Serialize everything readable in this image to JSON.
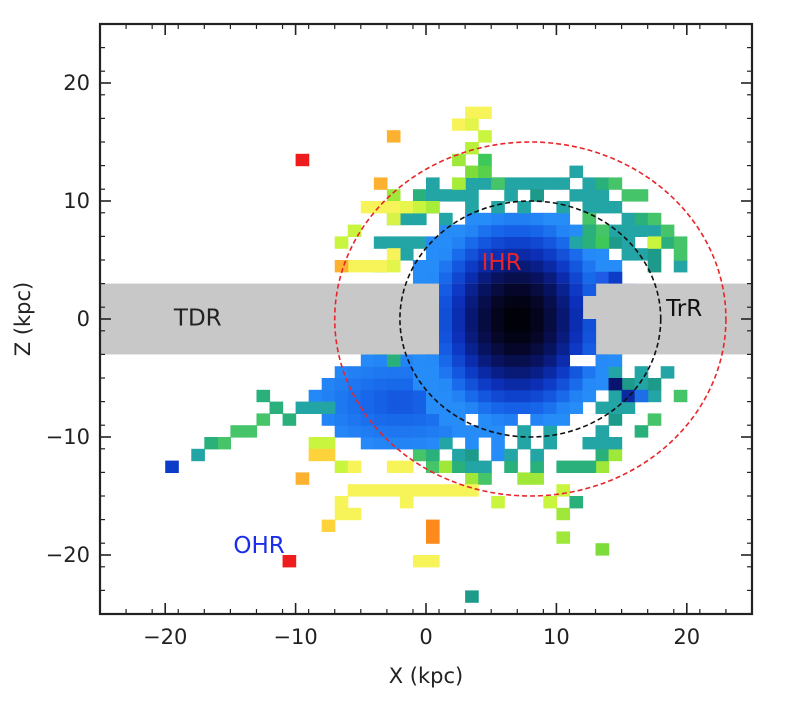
{
  "chart_data": {
    "type": "heatmap",
    "xlabel": "X (kpc)",
    "ylabel": "Z (kpc)",
    "xlim": [
      -25,
      25
    ],
    "ylim": [
      -25,
      25
    ],
    "xticks": [
      -20,
      -10,
      0,
      10,
      20
    ],
    "yticks": [
      -20,
      -10,
      0,
      10,
      20
    ],
    "xtick_labels": [
      "−20",
      "−10",
      "0",
      "10",
      "20"
    ],
    "ytick_labels": [
      "−20",
      "−10",
      "0",
      "10",
      "20"
    ],
    "minor_tick_step": 2,
    "grid": false,
    "bin_size": 1,
    "band": {
      "z_min": -3,
      "z_max": 3,
      "color": "#c8c8c8"
    },
    "circles": [
      {
        "center": [
          8,
          0
        ],
        "radius": 15,
        "color": "#e8262a",
        "style": "dashed"
      },
      {
        "center": [
          8,
          0
        ],
        "radius": 10,
        "color": "#111111",
        "style": "dashed"
      }
    ],
    "annotations": [
      {
        "text": "TDR",
        "x": -17.5,
        "y": 0,
        "color": "#222222"
      },
      {
        "text": "TrR",
        "x": 19.8,
        "y": 0.8,
        "color": "#111111"
      },
      {
        "text": "IHR",
        "x": 5.8,
        "y": 4.7,
        "color": "#e8262a"
      },
      {
        "text": "OHR",
        "x": -12.8,
        "y": -19.3,
        "color": "#1a2ee8"
      }
    ],
    "sparse_cells": [
      {
        "x": -10,
        "z": 13,
        "color": "#ee1c1c"
      },
      {
        "x": -3,
        "z": 15,
        "color": "#fdb130"
      },
      {
        "x": 3,
        "z": 17,
        "color": "#f7f45a"
      },
      {
        "x": 4,
        "z": 17,
        "color": "#f7f45a"
      },
      {
        "x": 2,
        "z": 16,
        "color": "#f7f45a"
      },
      {
        "x": 3,
        "z": 16,
        "color": "#e3f54a"
      },
      {
        "x": 4,
        "z": 15,
        "color": "#c9f53e"
      },
      {
        "x": 3,
        "z": 14,
        "color": "#b8f03a"
      },
      {
        "x": 2,
        "z": 13,
        "color": "#9fe83a"
      },
      {
        "x": 4,
        "z": 13,
        "color": "#3ec85a"
      },
      {
        "x": 3,
        "z": 12,
        "color": "#7edc3a"
      },
      {
        "x": 4,
        "z": 12,
        "color": "#58d04a"
      },
      {
        "x": 5,
        "z": 11,
        "color": "#46c46a"
      },
      {
        "x": 2,
        "z": 11,
        "color": "#a8ec3a"
      },
      {
        "x": 11,
        "z": 12,
        "color": "#23a5a5"
      },
      {
        "x": 8,
        "z": 10,
        "color": "#1e9a8a"
      },
      {
        "x": -4,
        "z": 11,
        "color": "#fdb130"
      },
      {
        "x": -5,
        "z": 9,
        "color": "#f7f45a"
      },
      {
        "x": -4,
        "z": 9,
        "color": "#f7f45a"
      },
      {
        "x": -3,
        "z": 9,
        "color": "#f7f45a"
      },
      {
        "x": -2,
        "z": 9,
        "color": "#e8f54a"
      },
      {
        "x": -1,
        "z": 9,
        "color": "#c9f53e"
      },
      {
        "x": 0,
        "z": 9,
        "color": "#a8ec3a"
      },
      {
        "x": -3,
        "z": 8,
        "color": "#d8f248"
      },
      {
        "x": -6,
        "z": 7,
        "color": "#c9f53e"
      },
      {
        "x": -7,
        "z": 6,
        "color": "#c9f53e"
      },
      {
        "x": -3,
        "z": 5,
        "color": "#f7f45a"
      },
      {
        "x": -4,
        "z": 4,
        "color": "#f7f45a"
      },
      {
        "x": -5,
        "z": 4,
        "color": "#f7f45a"
      },
      {
        "x": -6,
        "z": 4,
        "color": "#f7f45a"
      },
      {
        "x": -7,
        "z": 4,
        "color": "#fdb130"
      },
      {
        "x": -3,
        "z": 4,
        "color": "#e3f54a"
      },
      {
        "x": 12,
        "z": 8,
        "color": "#46c46a"
      },
      {
        "x": 13,
        "z": 7,
        "color": "#46c46a"
      },
      {
        "x": 12,
        "z": 7,
        "color": "#2ab07a"
      },
      {
        "x": 11,
        "z": 6,
        "color": "#23a5a5"
      },
      {
        "x": 12,
        "z": 6,
        "color": "#2ab07a"
      },
      {
        "x": 13,
        "z": 6,
        "color": "#3ec85a"
      },
      {
        "x": 17,
        "z": 6,
        "color": "#c9f53e"
      },
      {
        "x": 13,
        "z": 3,
        "color": "#1e5ce8"
      },
      {
        "x": 14,
        "z": 3,
        "color": "#0d3cc8"
      },
      {
        "x": 14,
        "z": -6,
        "color": "#08146e"
      },
      {
        "x": 15,
        "z": -7,
        "color": "#0a2aa0"
      },
      {
        "x": 16,
        "z": -7,
        "color": "#1e6ee8"
      },
      {
        "x": -4,
        "z": -3,
        "color": "#23a5a5"
      },
      {
        "x": -3,
        "z": -4,
        "color": "#2ab07a"
      },
      {
        "x": -13,
        "z": -7,
        "color": "#2ab07a"
      },
      {
        "x": -12,
        "z": -8,
        "color": "#2ab07a"
      },
      {
        "x": -10,
        "z": -8,
        "color": "#23a5a5"
      },
      {
        "x": -9,
        "z": -8,
        "color": "#23a5a5"
      },
      {
        "x": -8,
        "z": -8,
        "color": "#23a5a5"
      },
      {
        "x": -11,
        "z": -9,
        "color": "#2ab07a"
      },
      {
        "x": -13,
        "z": -9,
        "color": "#46c46a"
      },
      {
        "x": -14,
        "z": -10,
        "color": "#46c46a"
      },
      {
        "x": -15,
        "z": -10,
        "color": "#46c46a"
      },
      {
        "x": -16,
        "z": -11,
        "color": "#46c46a"
      },
      {
        "x": -17,
        "z": -11,
        "color": "#2ab07a"
      },
      {
        "x": -18,
        "z": -12,
        "color": "#23a5a5"
      },
      {
        "x": -20,
        "z": -13,
        "color": "#0d3cc8"
      },
      {
        "x": -9,
        "z": -11,
        "color": "#c9f53e"
      },
      {
        "x": -8,
        "z": -11,
        "color": "#c9f53e"
      },
      {
        "x": -9,
        "z": -12,
        "color": "#fdd23a"
      },
      {
        "x": -8,
        "z": -12,
        "color": "#fdd23a"
      },
      {
        "x": -10,
        "z": -14,
        "color": "#fdb130"
      },
      {
        "x": -7,
        "z": -13,
        "color": "#c9f53e"
      },
      {
        "x": -6,
        "z": -13,
        "color": "#f7f45a"
      },
      {
        "x": -3,
        "z": -13,
        "color": "#f7f45a"
      },
      {
        "x": -2,
        "z": -13,
        "color": "#f7f45a"
      },
      {
        "x": -6,
        "z": -15,
        "color": "#f7f45a"
      },
      {
        "x": -5,
        "z": -15,
        "color": "#f7f45a"
      },
      {
        "x": -4,
        "z": -15,
        "color": "#f7f45a"
      },
      {
        "x": -3,
        "z": -15,
        "color": "#f7f45a"
      },
      {
        "x": -2,
        "z": -15,
        "color": "#f7f45a"
      },
      {
        "x": -1,
        "z": -15,
        "color": "#f7f45a"
      },
      {
        "x": 0,
        "z": -15,
        "color": "#f7f45a"
      },
      {
        "x": 1,
        "z": -15,
        "color": "#f7f45a"
      },
      {
        "x": 2,
        "z": -15,
        "color": "#f7f45a"
      },
      {
        "x": 3,
        "z": -15,
        "color": "#f7f45a"
      },
      {
        "x": -7,
        "z": -16,
        "color": "#f7f45a"
      },
      {
        "x": -2,
        "z": -16,
        "color": "#f7f45a"
      },
      {
        "x": -7,
        "z": -17,
        "color": "#f7f45a"
      },
      {
        "x": -6,
        "z": -17,
        "color": "#f7f45a"
      },
      {
        "x": -8,
        "z": -18,
        "color": "#fdd23a"
      },
      {
        "x": 0,
        "z": -18,
        "color": "#fd8a1c"
      },
      {
        "x": 0,
        "z": -19,
        "color": "#fd8a1c"
      },
      {
        "x": 0,
        "z": -21,
        "color": "#f7f45a"
      },
      {
        "x": -1,
        "z": -21,
        "color": "#f7f45a"
      },
      {
        "x": -11,
        "z": -21,
        "color": "#ee1c1c"
      },
      {
        "x": 3,
        "z": -24,
        "color": "#1e9a8a"
      },
      {
        "x": 5,
        "z": -16,
        "color": "#c9f53e"
      },
      {
        "x": 10,
        "z": -15,
        "color": "#c9f53e"
      },
      {
        "x": 11,
        "z": -16,
        "color": "#2ab07a"
      },
      {
        "x": 9,
        "z": -16,
        "color": "#c9f53e"
      },
      {
        "x": 10,
        "z": -17,
        "color": "#9fe83a"
      },
      {
        "x": 10,
        "z": -19,
        "color": "#9fe83a"
      },
      {
        "x": 13,
        "z": -20,
        "color": "#7edc3a"
      },
      {
        "x": 12,
        "z": -13,
        "color": "#2ab07a"
      },
      {
        "x": 11,
        "z": -13,
        "color": "#2ab07a"
      }
    ]
  }
}
